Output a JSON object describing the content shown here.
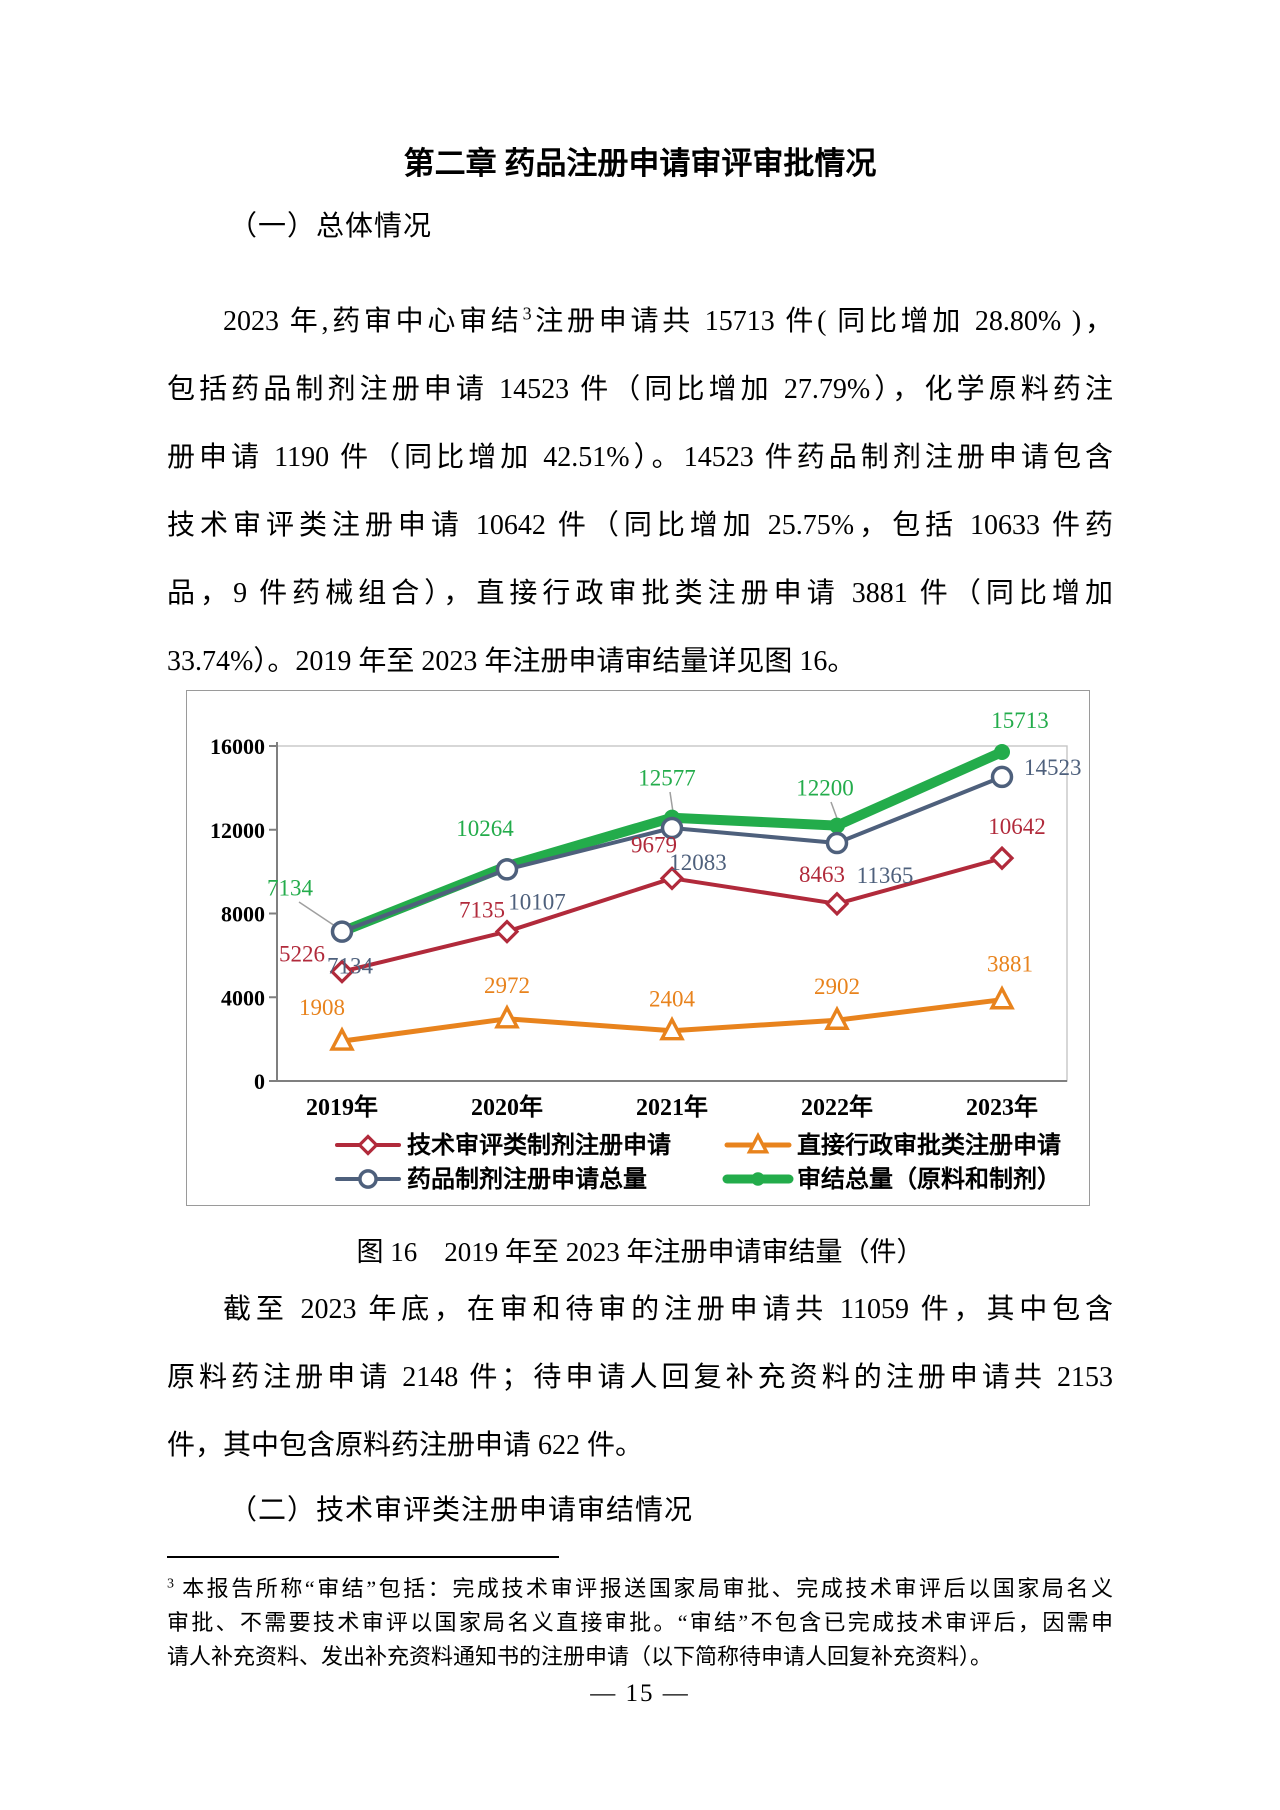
{
  "document": {
    "chapter_title": "第二章 药品注册申请审评审批情况",
    "sections": {
      "s1_heading": "（一）总体情况",
      "s2_heading": "（二）技术审评类注册申请审结情况"
    },
    "paragraph1": {
      "line1_pre": "2023 年,药审中心审结",
      "line1_sup": "3",
      "line1_post": "注册申请共 15713 件( 同比增加 28.80% )，",
      "lines_rest": [
        "包括药品制剂注册申请 14523 件（同比增加 27.79%），化学原料药注",
        "册申请 1190 件（同比增加 42.51%）。14523 件药品制剂注册申请包含",
        "技术审评类注册申请 10642 件（同比增加 25.75%，包括 10633 件药",
        "品，9 件药械组合），直接行政审批类注册申请 3881 件（同比增加",
        "33.74%）。2019 年至 2023 年注册申请审结量详见图 16。"
      ]
    },
    "figure": {
      "caption": "图 16　2019 年至 2023 年注册申请审结量（件）"
    },
    "paragraph2": {
      "lines": [
        "截至 2023 年底，在审和待审的注册申请共 11059 件，其中包含",
        "原料药注册申请 2148 件；待申请人回复补充资料的注册申请共 2153",
        "件，其中包含原料药注册申请 622 件。"
      ]
    },
    "footnote": {
      "marker": "3",
      "lines": [
        "本报告所称“审结”包括：完成技术审评报送国家局审批、完成技术审评后以国家局名义",
        "审批、不需要技术审评以国家局名义直接审批。“审结”不包含已完成技术审评后，因需申",
        "请人补充资料、发出补充资料通知书的注册申请（以下简称待申请人回复补充资料）。"
      ]
    },
    "page_number": "— 15 —"
  },
  "chart_data": {
    "type": "line",
    "title": "图 16　2019 年至 2023 年注册申请审结量（件）",
    "categories": [
      "2019年",
      "2020年",
      "2021年",
      "2022年",
      "2023年"
    ],
    "series": [
      {
        "name": "技术审评类制剂注册申请",
        "marker": "diamond",
        "color": "#B12A3B",
        "values": [
          5226,
          7135,
          9679,
          8463,
          10642
        ]
      },
      {
        "name": "直接行政审批类注册申请",
        "marker": "triangle",
        "color": "#E8831D",
        "values": [
          1908,
          2972,
          2404,
          2902,
          3881
        ]
      },
      {
        "name": "药品制剂注册申请总量",
        "marker": "circle",
        "color": "#4E607C",
        "values": [
          7134,
          10107,
          12083,
          11365,
          14523
        ]
      },
      {
        "name": "审结总量（原料和制剂）",
        "marker": "dot",
        "color": "#23AC4B",
        "values": [
          7134,
          10264,
          12577,
          12200,
          15713
        ]
      }
    ],
    "ylim": [
      0,
      16000
    ],
    "yticks": [
      0,
      4000,
      8000,
      12000,
      16000
    ],
    "ylabel": "",
    "xlabel": "",
    "grid": false,
    "legend_position": "bottom-inside",
    "axis_color": "#7f7f7f",
    "plot_border_color": "#c6c6c6",
    "label_leader_color": "#9f9f9f"
  }
}
